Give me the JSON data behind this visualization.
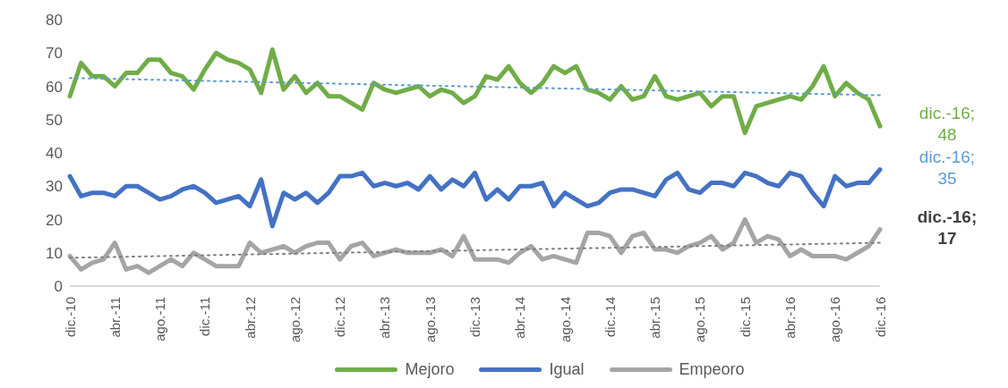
{
  "chart_data": {
    "type": "line",
    "categories": [
      "dic.-10",
      null,
      null,
      null,
      "abr.-11",
      null,
      null,
      null,
      "ago.-11",
      null,
      null,
      null,
      "dic.-11",
      null,
      null,
      null,
      "abr.-12",
      null,
      null,
      null,
      "ago.-12",
      null,
      null,
      null,
      "dic.-12",
      null,
      null,
      null,
      "abr.-13",
      null,
      null,
      null,
      "ago.-13",
      null,
      null,
      null,
      "dic.-13",
      null,
      null,
      null,
      "abr.-14",
      null,
      null,
      null,
      "ago.-14",
      null,
      null,
      null,
      "dic.-14",
      null,
      null,
      null,
      "abr.-15",
      null,
      null,
      null,
      "ago.-15",
      null,
      null,
      null,
      "dic.-15",
      null,
      null,
      null,
      "abr.-16",
      null,
      null,
      null,
      "ago.-16",
      null,
      null,
      null,
      "dic.-16"
    ],
    "series": [
      {
        "name": "Mejoro",
        "color": "#70ad47",
        "values": [
          57,
          67,
          63,
          63,
          60,
          64,
          64,
          68,
          68,
          64,
          63,
          59,
          65,
          70,
          68,
          67,
          65,
          58,
          71,
          59,
          63,
          58,
          61,
          57,
          57,
          55,
          53,
          61,
          59,
          58,
          59,
          60,
          57,
          59,
          58,
          55,
          57,
          63,
          62,
          66,
          61,
          58,
          61,
          66,
          64,
          66,
          59,
          58,
          56,
          60,
          56,
          57,
          63,
          57,
          56,
          57,
          58,
          54,
          57,
          57,
          46,
          54,
          55,
          56,
          57,
          56,
          60,
          66,
          57,
          61,
          58,
          56,
          48
        ]
      },
      {
        "name": "Igual",
        "color": "#4472c4",
        "values": [
          33,
          27,
          28,
          28,
          27,
          30,
          30,
          28,
          26,
          27,
          29,
          30,
          28,
          25,
          26,
          27,
          24,
          32,
          18,
          28,
          26,
          28,
          25,
          28,
          33,
          33,
          34,
          30,
          31,
          30,
          31,
          29,
          33,
          29,
          32,
          30,
          34,
          26,
          29,
          26,
          30,
          30,
          31,
          24,
          28,
          26,
          24,
          25,
          28,
          29,
          29,
          28,
          27,
          32,
          34,
          29,
          28,
          31,
          31,
          30,
          34,
          33,
          31,
          30,
          34,
          33,
          28,
          24,
          33,
          30,
          31,
          31,
          35
        ]
      },
      {
        "name": "Empeoro",
        "color": "#a5a5a5",
        "values": [
          9,
          5,
          7,
          8,
          13,
          5,
          6,
          4,
          6,
          8,
          6,
          10,
          8,
          6,
          6,
          6,
          13,
          10,
          11,
          12,
          10,
          12,
          13,
          13,
          8,
          12,
          13,
          9,
          10,
          11,
          10,
          10,
          10,
          11,
          9,
          15,
          8,
          8,
          8,
          7,
          10,
          12,
          8,
          9,
          8,
          7,
          16,
          16,
          15,
          10,
          15,
          16,
          11,
          11,
          10,
          12,
          13,
          15,
          11,
          13,
          20,
          13,
          15,
          14,
          9,
          11,
          9,
          9,
          9,
          8,
          10,
          12,
          17
        ]
      },
      {
        "type": "line",
        "color": "#5b9bd5",
        "line_style": "dotted",
        "x": [
          "dic.-10",
          "dic.-16"
        ],
        "values": [
          62.5,
          57.3
        ]
      },
      {
        "type": "line",
        "color": "#7f7f7f",
        "line_style": "dotted",
        "x": [
          "dic.-10",
          "dic.-16"
        ],
        "values": [
          8.5,
          13
        ]
      }
    ],
    "annotations": [
      {
        "text": "dic.-16; 48",
        "x": "dic.-16",
        "y": 48
      },
      {
        "text": "dic.-16; 35",
        "x": "dic.-16",
        "y": 35
      },
      {
        "text": "dic.-16; 17",
        "x": "dic.-16",
        "y": 17
      }
    ],
    "ylim": [
      0,
      80
    ],
    "yticks": [
      0,
      10,
      20,
      30,
      40,
      50,
      60,
      70,
      80
    ],
    "grid": false,
    "legend": "bottom",
    "marker": "none",
    "line_style": "solid"
  }
}
